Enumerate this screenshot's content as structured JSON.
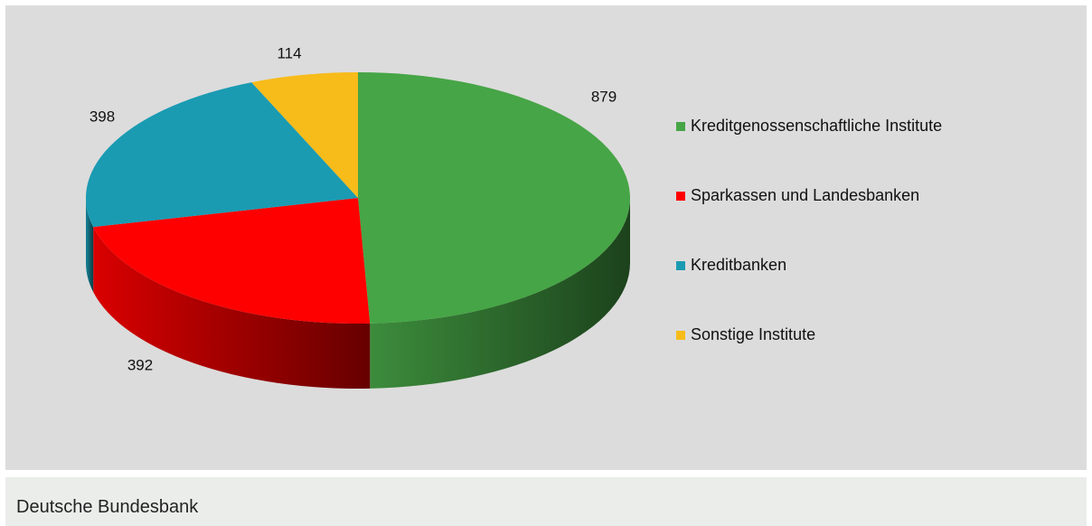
{
  "chart_data": {
    "type": "pie",
    "categories": [
      "Kreditgenossenschaftliche Institute",
      "Sparkassen und Landesbanken",
      "Kreditbanken",
      "Sonstige Institute"
    ],
    "values": [
      879,
      392,
      398,
      114
    ],
    "colors": [
      "#46a546",
      "#ff0000",
      "#1a9bb2",
      "#f7bb1a"
    ]
  },
  "footer": {
    "text": "Deutsche Bundesbank"
  }
}
